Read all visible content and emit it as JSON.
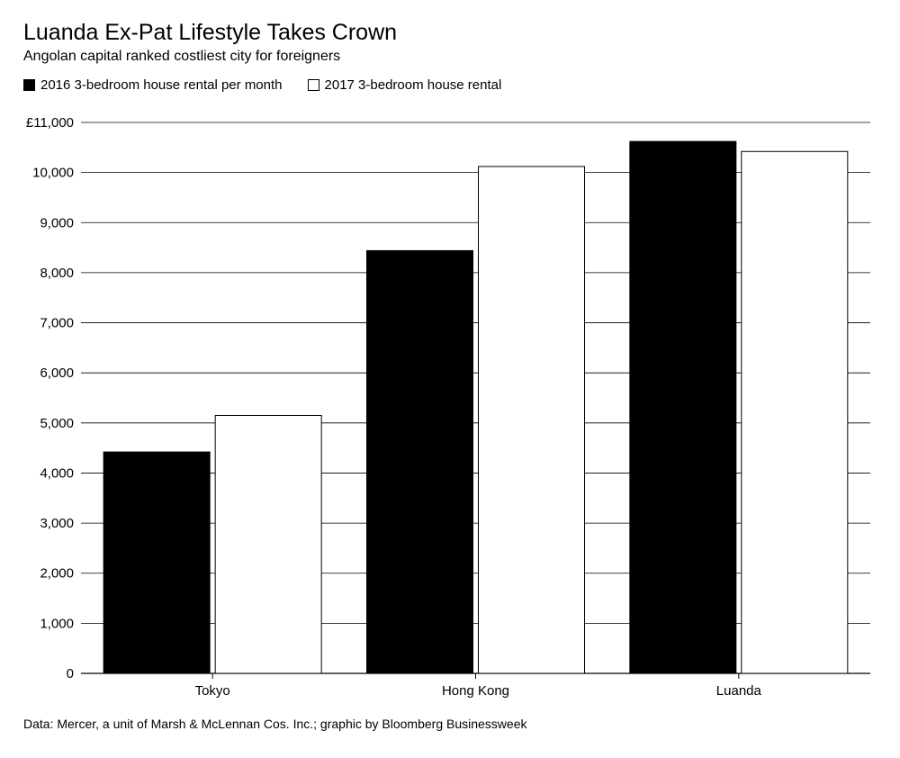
{
  "chart_data": {
    "type": "bar",
    "title": "Luanda Ex-Pat Lifestyle Takes Crown",
    "subtitle": "Angolan capital ranked costliest city for foreigners",
    "categories": [
      "Tokyo",
      "Hong Kong",
      "Luanda"
    ],
    "series": [
      {
        "name": "2016 3-bedroom house rental per month",
        "values": [
          4420,
          8440,
          10620
        ],
        "color": "#000000"
      },
      {
        "name": "2017 3-bedroom house rental",
        "values": [
          5150,
          10120,
          10420
        ],
        "color": "#ffffff"
      }
    ],
    "ylim": [
      0,
      11000
    ],
    "yticks": [
      "0",
      "1,000",
      "2,000",
      "3,000",
      "4,000",
      "5,000",
      "6,000",
      "7,000",
      "8,000",
      "9,000",
      "10,000",
      "£11,000"
    ],
    "ytick_values": [
      0,
      1000,
      2000,
      3000,
      4000,
      5000,
      6000,
      7000,
      8000,
      9000,
      10000,
      11000
    ],
    "grid": true,
    "legend_position": "top-left",
    "source": "Data: Mercer, a unit of Marsh & McLennan Cos. Inc.; graphic by Bloomberg Businessweek"
  }
}
